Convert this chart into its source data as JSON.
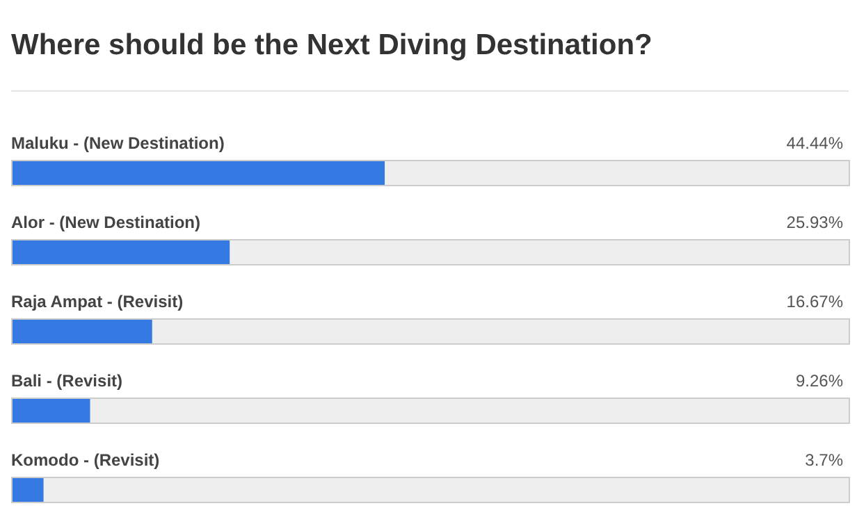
{
  "chart_data": {
    "type": "bar",
    "orientation": "horizontal",
    "title": "Where should be the Next Diving Destination?",
    "categories": [
      "Maluku - (New Destination)",
      "Alor - (New Destination)",
      "Raja Ampat - (Revisit)",
      "Bali - (Revisit)",
      "Komodo - (Revisit)"
    ],
    "values": [
      44.44,
      25.93,
      16.67,
      9.26,
      3.7
    ],
    "value_labels": [
      "44.44%",
      "25.93%",
      "16.67%",
      "9.26%",
      "3.7%"
    ],
    "color": "#3579e3",
    "xlim": [
      0,
      100
    ]
  }
}
